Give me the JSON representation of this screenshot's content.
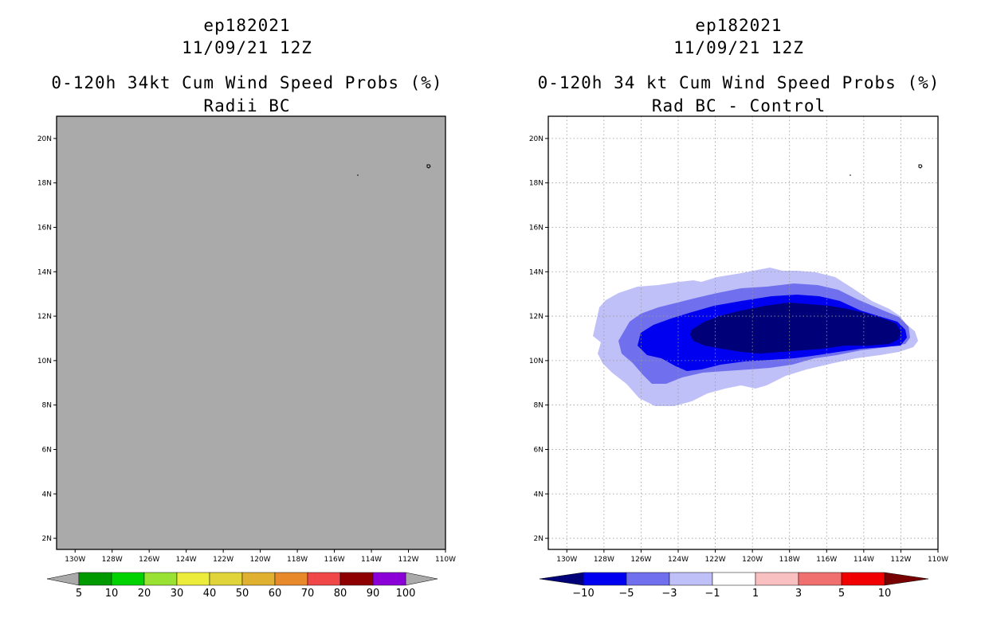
{
  "chart_data": [
    {
      "type": "contour-map",
      "storm_id": "ep182021",
      "datetime": "11/09/21 12Z",
      "title": "0-120h 34kt Cum Wind Speed Probs (%)",
      "subtitle": "Radii BC",
      "lon_ticks": [
        "130W",
        "128W",
        "126W",
        "124W",
        "122W",
        "120W",
        "118W",
        "116W",
        "114W",
        "112W",
        "110W"
      ],
      "lat_ticks": [
        "20N",
        "18N",
        "16N",
        "14N",
        "12N",
        "10N",
        "8N",
        "6N",
        "4N",
        "2N"
      ],
      "lon_range": [
        -131,
        -110
      ],
      "lat_range": [
        1.5,
        21
      ],
      "grid": false,
      "field_fill": "#aaaaaa",
      "colorbar": {
        "labels": [
          "5",
          "10",
          "20",
          "30",
          "40",
          "50",
          "60",
          "70",
          "80",
          "90",
          "100"
        ],
        "colors": [
          "#009a00",
          "#00d200",
          "#99e233",
          "#ecec3c",
          "#e0d43a",
          "#e0b030",
          "#e88a2c",
          "#f04848",
          "#8e0000",
          "#8c00d8"
        ],
        "end_colors": [
          "#aaaaaa",
          "#aaaaaa"
        ]
      }
    },
    {
      "type": "contour-map",
      "storm_id": "ep182021",
      "datetime": "11/09/21 12Z",
      "title": "0-120h 34 kt Cum Wind Speed Probs (%)",
      "subtitle": "Rad BC - Control",
      "lon_ticks": [
        "130W",
        "128W",
        "126W",
        "124W",
        "122W",
        "120W",
        "118W",
        "116W",
        "114W",
        "112W",
        "110W"
      ],
      "lat_ticks": [
        "20N",
        "18N",
        "16N",
        "14N",
        "12N",
        "10N",
        "8N",
        "6N",
        "4N",
        "2N"
      ],
      "lon_range": [
        -131,
        -110
      ],
      "lat_range": [
        1.5,
        21
      ],
      "grid": true,
      "difference_levels": [
        {
          "level": "<=-1",
          "color": "#c0c0f8",
          "region_lon": [
            -129.0,
            -111.1
          ],
          "region_lat": [
            7.9,
            14.2
          ]
        },
        {
          "level": "<=-3",
          "color": "#7070ee",
          "region_lon": [
            -127.0,
            -111.4
          ],
          "region_lat": [
            8.9,
            13.4
          ]
        },
        {
          "level": "<=-5",
          "color": "#0000f0",
          "region_lon": [
            -126.3,
            -111.5
          ],
          "region_lat": [
            9.6,
            13.0
          ]
        },
        {
          "level": "<=-10",
          "color": "#000078",
          "region_lon": [
            -122.3,
            -111.8
          ],
          "region_lat": [
            10.3,
            12.7
          ]
        }
      ],
      "colorbar": {
        "labels": [
          "-10",
          "-5",
          "-3",
          "-1",
          "1",
          "3",
          "5",
          "10"
        ],
        "colors": [
          "#0000f0",
          "#7070ee",
          "#c0c0f8",
          "#ffffff",
          "#f8c0c0",
          "#f07070",
          "#f00000"
        ],
        "end_colors": [
          "#000078",
          "#780000"
        ]
      }
    }
  ]
}
